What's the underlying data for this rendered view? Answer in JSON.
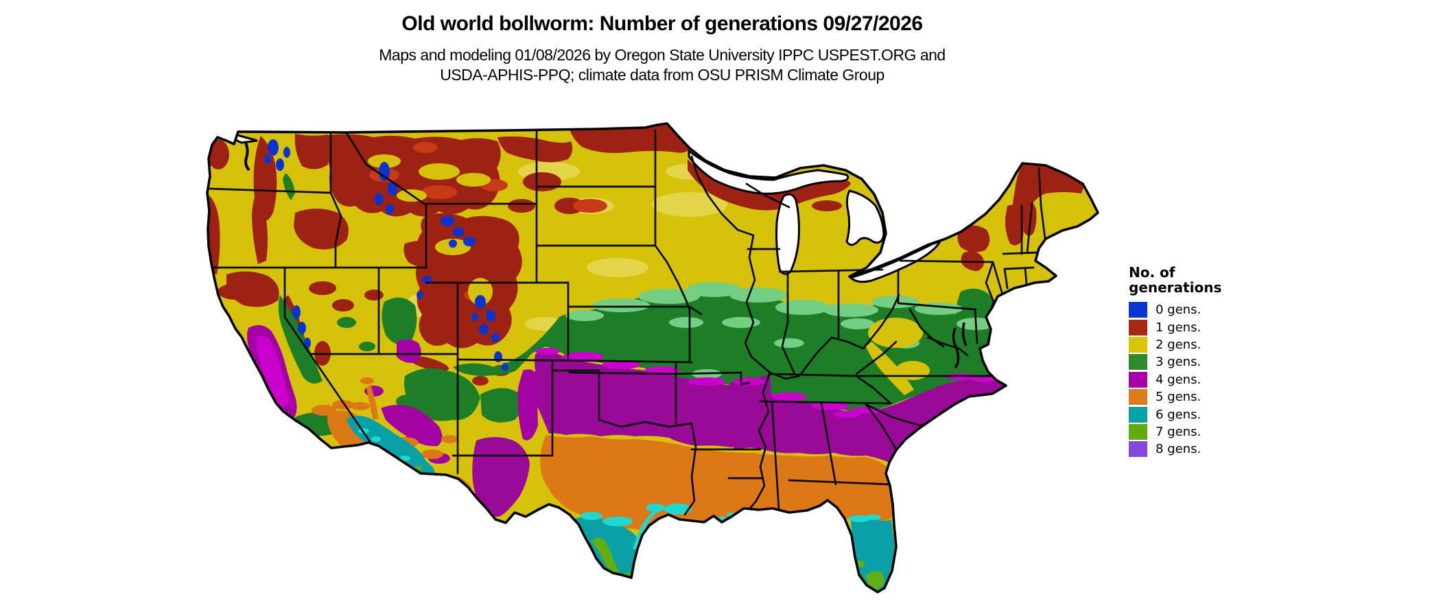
{
  "header": {
    "title": "Old world bollworm: Number of generations 09/27/2026",
    "subtitle_line1": "Maps and modeling 01/08/2026 by Oregon State University IPPC USPEST.ORG and",
    "subtitle_line2": "USDA-APHIS-PPQ; climate data from OSU PRISM Climate Group"
  },
  "legend": {
    "title_line1": "No. of",
    "title_line2": "generations",
    "items": [
      {
        "label": "0 gens.",
        "value": 0,
        "color": "#0B35D0"
      },
      {
        "label": "1 gens.",
        "value": 1,
        "color": "#A62914"
      },
      {
        "label": "2 gens.",
        "value": 2,
        "color": "#D9C505"
      },
      {
        "label": "3 gens.",
        "value": 3,
        "color": "#2E8B2B"
      },
      {
        "label": "4 gens.",
        "value": 4,
        "color": "#A800A8"
      },
      {
        "label": "5 gens.",
        "value": 5,
        "color": "#DF7A1E"
      },
      {
        "label": "6 gens.",
        "value": 6,
        "color": "#00A3A8"
      },
      {
        "label": "7 gens.",
        "value": 7,
        "color": "#63AC0F"
      },
      {
        "label": "8 gens.",
        "value": 8,
        "color": "#8648DC"
      }
    ]
  },
  "map": {
    "background_color": "#FFFFFF",
    "border_color": "#000000",
    "class_colors": {
      "0_gens": "#0B33CE",
      "1_gens": "#9E2213",
      "2_gens": "#D6C20A",
      "3_gens": "#1E7E28",
      "4_gens": "#990A99",
      "5_gens": "#DC7816",
      "6_gens": "#0AA0A6",
      "7_gens": "#63AE14",
      "8_gens": "#8A4BDB"
    }
  }
}
